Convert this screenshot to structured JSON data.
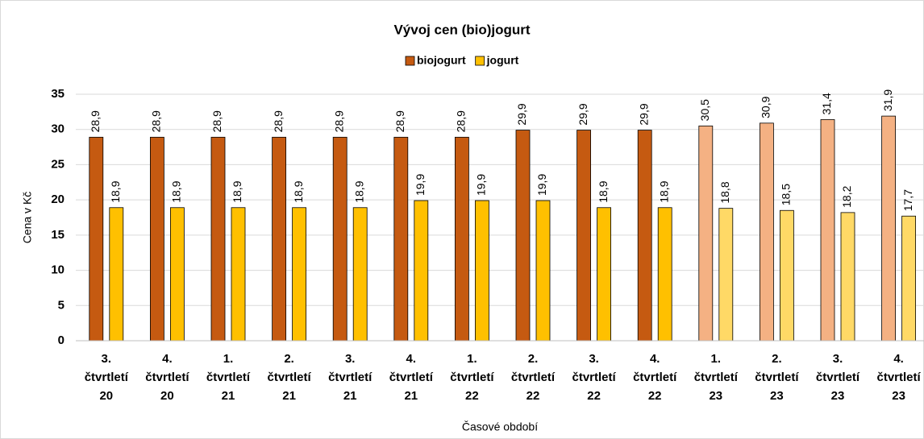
{
  "chart_data": {
    "type": "bar",
    "title": "Vývoj cen (bio)jogurt",
    "categories": [
      [
        "3.",
        "čtvrtletí",
        "20"
      ],
      [
        "4.",
        "čtvrtletí",
        "20"
      ],
      [
        "1.",
        "čtvrtletí",
        "21"
      ],
      [
        "2.",
        "čtvrtletí",
        "21"
      ],
      [
        "3.",
        "čtvrtletí",
        "21"
      ],
      [
        "4.",
        "čtvrtletí",
        "21"
      ],
      [
        "1.",
        "čtvrtletí",
        "22"
      ],
      [
        "2.",
        "čtvrtletí",
        "22"
      ],
      [
        "3.",
        "čtvrtletí",
        "22"
      ],
      [
        "4.",
        "čtvrtletí",
        "22"
      ],
      [
        "1.",
        "čtvrtletí",
        "23"
      ],
      [
        "2.",
        "čtvrtletí",
        "23"
      ],
      [
        "3.",
        "čtvrtletí",
        "23"
      ],
      [
        "4.",
        "čtvrtletí",
        "23"
      ]
    ],
    "series": [
      {
        "name": "biojogurt",
        "color": "#c55a11",
        "colors": [
          "#c55a11",
          "#c55a11",
          "#c55a11",
          "#c55a11",
          "#c55a11",
          "#c55a11",
          "#c55a11",
          "#c55a11",
          "#c55a11",
          "#c55a11",
          "#f4b183",
          "#f4b183",
          "#f4b183",
          "#f4b183"
        ],
        "values": [
          28.9,
          28.9,
          28.9,
          28.9,
          28.9,
          28.9,
          28.9,
          29.9,
          29.9,
          29.9,
          30.5,
          30.9,
          31.4,
          31.9
        ],
        "value_labels": [
          "28,9",
          "28,9",
          "28,9",
          "28,9",
          "28,9",
          "28,9",
          "28,9",
          "29,9",
          "29,9",
          "29,9",
          "30,5",
          "30,9",
          "31,4",
          "31,9"
        ]
      },
      {
        "name": "jogurt",
        "color": "#ffc000",
        "colors": [
          "#ffc000",
          "#ffc000",
          "#ffc000",
          "#ffc000",
          "#ffc000",
          "#ffc000",
          "#ffc000",
          "#ffc000",
          "#ffc000",
          "#ffc000",
          "#ffd966",
          "#ffd966",
          "#ffd966",
          "#ffd966"
        ],
        "values": [
          18.9,
          18.9,
          18.9,
          18.9,
          18.9,
          19.9,
          19.9,
          19.9,
          18.9,
          18.9,
          18.8,
          18.5,
          18.2,
          17.7
        ],
        "value_labels": [
          "18,9",
          "18,9",
          "18,9",
          "18,9",
          "18,9",
          "19,9",
          "19,9",
          "19,9",
          "18,9",
          "18,9",
          "18,8",
          "18,5",
          "18,2",
          "17,7"
        ]
      }
    ],
    "ylabel": "Cena v Kč",
    "xlabel": "Časové období",
    "ylim": [
      0,
      35
    ],
    "yticks": [
      0,
      5,
      10,
      15,
      20,
      25,
      30,
      35
    ],
    "grid": true,
    "legend": "top"
  }
}
